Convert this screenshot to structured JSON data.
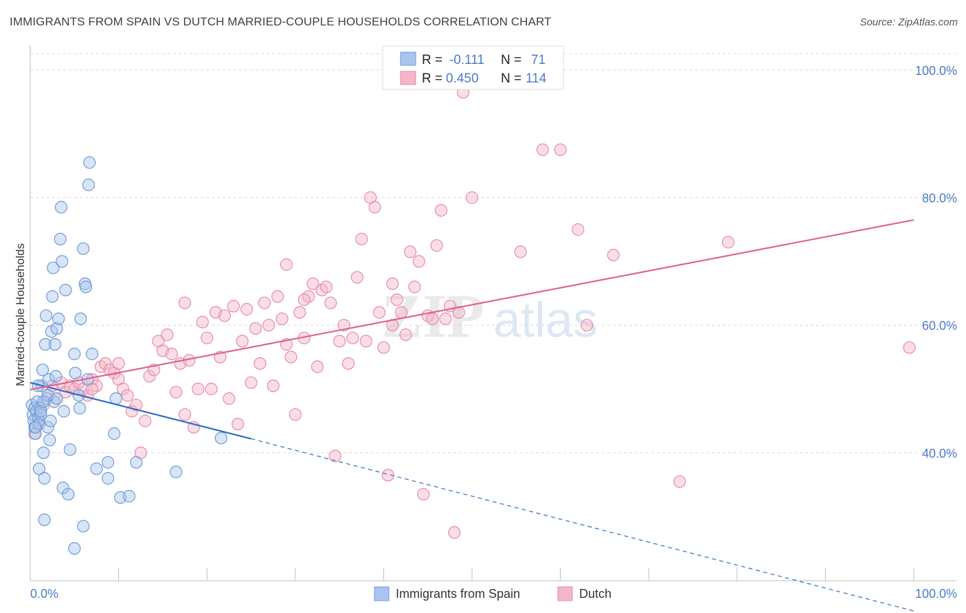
{
  "header": {
    "title": "IMMIGRANTS FROM SPAIN VS DUTCH MARRIED-COUPLE HOUSEHOLDS CORRELATION CHART",
    "source": "Source: ZipAtlas.com"
  },
  "watermark": "ZIPatlas",
  "colors": {
    "blue_fill": "#a9c6ee",
    "blue_stroke": "#6d9ad6",
    "blue_line": "#2f6cc4",
    "pink_fill": "#f5b6c8",
    "pink_stroke": "#e88aa6",
    "pink_line": "#e0648d",
    "axis_text": "#4a7cc9",
    "grid": "#d8d8d8"
  },
  "legend_top": {
    "rows": [
      {
        "r_label": "R = ",
        "r_value": "-0.111",
        "n_label": "N = ",
        "n_value": "71"
      },
      {
        "r_label": "R = ",
        "r_value": "0.450",
        "n_label": "N = ",
        "n_value": "114"
      }
    ]
  },
  "chart_data": {
    "type": "scatter",
    "title": "IMMIGRANTS FROM SPAIN VS DUTCH MARRIED-COUPLE HOUSEHOLDS CORRELATION CHART",
    "xlabel": "",
    "ylabel": "Married-couple Households",
    "xlim": [
      0,
      100
    ],
    "ylim": [
      22,
      103
    ],
    "x_tick_labels": [
      "0.0%",
      "100.0%"
    ],
    "y_ticks": [
      40,
      60,
      80,
      100
    ],
    "y_tick_labels": [
      "40.0%",
      "60.0%",
      "80.0%",
      "100.0%"
    ],
    "grid": true,
    "legend_position": "bottom",
    "series": [
      {
        "name": "Immigrants from Spain",
        "color": "#a9c6ee",
        "r": -0.111,
        "n": 71,
        "trend": {
          "x0": 0,
          "y0": 51.0,
          "x1": 25,
          "y1": 42.2,
          "dashed_to_x": 100,
          "dashed_to_y": 15.2
        },
        "points": [
          [
            0.2,
            47.5
          ],
          [
            0.3,
            46.0
          ],
          [
            0.4,
            45.0
          ],
          [
            0.5,
            44.0
          ],
          [
            0.5,
            47.0
          ],
          [
            0.6,
            43.0
          ],
          [
            0.7,
            46.5
          ],
          [
            0.8,
            48.0
          ],
          [
            0.9,
            45.5
          ],
          [
            1.0,
            44.5
          ],
          [
            1.1,
            47.0
          ],
          [
            1.2,
            46.0
          ],
          [
            1.3,
            50.5
          ],
          [
            1.4,
            53.0
          ],
          [
            1.5,
            40.0
          ],
          [
            1.6,
            36.0
          ],
          [
            1.7,
            57.0
          ],
          [
            1.8,
            61.5
          ],
          [
            1.9,
            48.5
          ],
          [
            2.0,
            44.0
          ],
          [
            2.1,
            51.5
          ],
          [
            2.2,
            42.0
          ],
          [
            2.3,
            45.0
          ],
          [
            2.4,
            59.0
          ],
          [
            2.5,
            64.5
          ],
          [
            2.6,
            69.0
          ],
          [
            2.7,
            48.0
          ],
          [
            2.8,
            57.0
          ],
          [
            2.9,
            52.0
          ],
          [
            3.0,
            59.5
          ],
          [
            3.2,
            61.0
          ],
          [
            3.4,
            73.5
          ],
          [
            3.5,
            78.5
          ],
          [
            3.6,
            70.0
          ],
          [
            3.7,
            34.5
          ],
          [
            3.8,
            46.5
          ],
          [
            4.0,
            65.5
          ],
          [
            1.6,
            29.5
          ],
          [
            1.0,
            37.5
          ],
          [
            4.5,
            40.5
          ],
          [
            4.3,
            33.5
          ],
          [
            5.0,
            55.5
          ],
          [
            5.1,
            52.5
          ],
          [
            5.5,
            49.0
          ],
          [
            5.6,
            47.0
          ],
          [
            5.7,
            61.0
          ],
          [
            6.0,
            72.0
          ],
          [
            6.2,
            66.5
          ],
          [
            6.3,
            66.0
          ],
          [
            6.0,
            28.5
          ],
          [
            6.5,
            51.5
          ],
          [
            6.6,
            82.0
          ],
          [
            6.7,
            85.5
          ],
          [
            7.0,
            55.5
          ],
          [
            7.5,
            37.5
          ],
          [
            8.8,
            36.0
          ],
          [
            8.8,
            38.5
          ],
          [
            9.5,
            43.0
          ],
          [
            9.7,
            48.5
          ],
          [
            10.2,
            33.0
          ],
          [
            11.2,
            33.2
          ],
          [
            12.0,
            38.5
          ],
          [
            16.5,
            37.0
          ],
          [
            21.6,
            42.3
          ],
          [
            5.0,
            25.0
          ],
          [
            1.2,
            46.5
          ],
          [
            0.9,
            50.5
          ],
          [
            2.0,
            49.0
          ],
          [
            1.5,
            48.0
          ],
          [
            3.0,
            48.5
          ],
          [
            0.6,
            44.0
          ]
        ]
      },
      {
        "name": "Dutch",
        "color": "#f5b6c8",
        "r": 0.45,
        "n": 114,
        "trend": {
          "x0": 0,
          "y0": 49.9,
          "x1": 100,
          "y1": 76.5
        },
        "points": [
          [
            0.5,
            43.0
          ],
          [
            1.0,
            45.0
          ],
          [
            1.5,
            47.5
          ],
          [
            2.0,
            49.0
          ],
          [
            2.5,
            50.5
          ],
          [
            3.0,
            48.5
          ],
          [
            3.5,
            51.0
          ],
          [
            4.0,
            49.5
          ],
          [
            4.5,
            50.5
          ],
          [
            5.0,
            50.0
          ],
          [
            5.5,
            51.0
          ],
          [
            6.0,
            50.0
          ],
          [
            6.5,
            49.0
          ],
          [
            7.0,
            51.5
          ],
          [
            7.5,
            50.5
          ],
          [
            8.0,
            53.5
          ],
          [
            8.5,
            54.0
          ],
          [
            9.0,
            53.0
          ],
          [
            9.5,
            52.5
          ],
          [
            10.0,
            51.5
          ],
          [
            10.5,
            50.0
          ],
          [
            11.0,
            49.0
          ],
          [
            11.5,
            46.5
          ],
          [
            12.0,
            47.5
          ],
          [
            12.5,
            40.0
          ],
          [
            13.0,
            45.0
          ],
          [
            13.5,
            52.0
          ],
          [
            14.0,
            53.0
          ],
          [
            14.5,
            57.5
          ],
          [
            15.0,
            56.0
          ],
          [
            15.5,
            58.5
          ],
          [
            16.0,
            55.5
          ],
          [
            16.5,
            49.5
          ],
          [
            17.0,
            54.0
          ],
          [
            17.5,
            46.0
          ],
          [
            18.0,
            54.5
          ],
          [
            18.5,
            44.0
          ],
          [
            19.0,
            50.0
          ],
          [
            19.5,
            60.5
          ],
          [
            20.0,
            58.0
          ],
          [
            20.5,
            50.0
          ],
          [
            21.0,
            62.0
          ],
          [
            21.5,
            55.0
          ],
          [
            22.0,
            61.5
          ],
          [
            22.5,
            48.5
          ],
          [
            23.0,
            63.0
          ],
          [
            23.5,
            44.5
          ],
          [
            24.0,
            57.5
          ],
          [
            24.5,
            62.5
          ],
          [
            25.0,
            51.0
          ],
          [
            25.5,
            59.5
          ],
          [
            26.0,
            54.0
          ],
          [
            26.5,
            63.5
          ],
          [
            27.0,
            60.0
          ],
          [
            27.5,
            50.5
          ],
          [
            28.0,
            64.5
          ],
          [
            28.5,
            61.0
          ],
          [
            29.0,
            57.0
          ],
          [
            29.5,
            55.0
          ],
          [
            30.0,
            46.0
          ],
          [
            30.5,
            62.0
          ],
          [
            31.0,
            58.0
          ],
          [
            31.5,
            64.5
          ],
          [
            32.0,
            66.5
          ],
          [
            32.5,
            53.5
          ],
          [
            33.0,
            65.5
          ],
          [
            33.5,
            66.0
          ],
          [
            34.0,
            63.5
          ],
          [
            34.5,
            39.5
          ],
          [
            35.0,
            57.5
          ],
          [
            35.5,
            60.0
          ],
          [
            36.0,
            54.0
          ],
          [
            36.5,
            58.0
          ],
          [
            37.0,
            67.5
          ],
          [
            37.5,
            73.5
          ],
          [
            38.0,
            57.5
          ],
          [
            38.5,
            80.0
          ],
          [
            39.0,
            78.5
          ],
          [
            39.5,
            62.0
          ],
          [
            40.0,
            56.5
          ],
          [
            40.5,
            36.5
          ],
          [
            41.0,
            60.0
          ],
          [
            41.5,
            64.0
          ],
          [
            42.0,
            62.0
          ],
          [
            42.5,
            58.5
          ],
          [
            43.0,
            71.5
          ],
          [
            43.5,
            66.0
          ],
          [
            44.0,
            70.0
          ],
          [
            44.5,
            33.5
          ],
          [
            45.0,
            61.5
          ],
          [
            45.5,
            61.0
          ],
          [
            46.0,
            72.5
          ],
          [
            46.5,
            78.0
          ],
          [
            47.0,
            61.0
          ],
          [
            47.5,
            63.0
          ],
          [
            48.0,
            27.5
          ],
          [
            48.5,
            62.0
          ],
          [
            49.0,
            96.5
          ],
          [
            50.0,
            80.0
          ],
          [
            55.5,
            71.5
          ],
          [
            58.0,
            87.5
          ],
          [
            60.0,
            87.5
          ],
          [
            62.0,
            75.0
          ],
          [
            63.0,
            60.0
          ],
          [
            66.0,
            71.0
          ],
          [
            73.5,
            35.5
          ],
          [
            79.0,
            73.0
          ],
          [
            99.5,
            56.5
          ],
          [
            7.0,
            50.0
          ],
          [
            10.0,
            54.0
          ],
          [
            17.5,
            63.5
          ],
          [
            29.0,
            69.5
          ],
          [
            31.0,
            64.0
          ],
          [
            41.0,
            66.5
          ]
        ]
      }
    ]
  },
  "bottom_legend": {
    "items": [
      {
        "label": "Immigrants from Spain"
      },
      {
        "label": "Dutch"
      }
    ]
  }
}
